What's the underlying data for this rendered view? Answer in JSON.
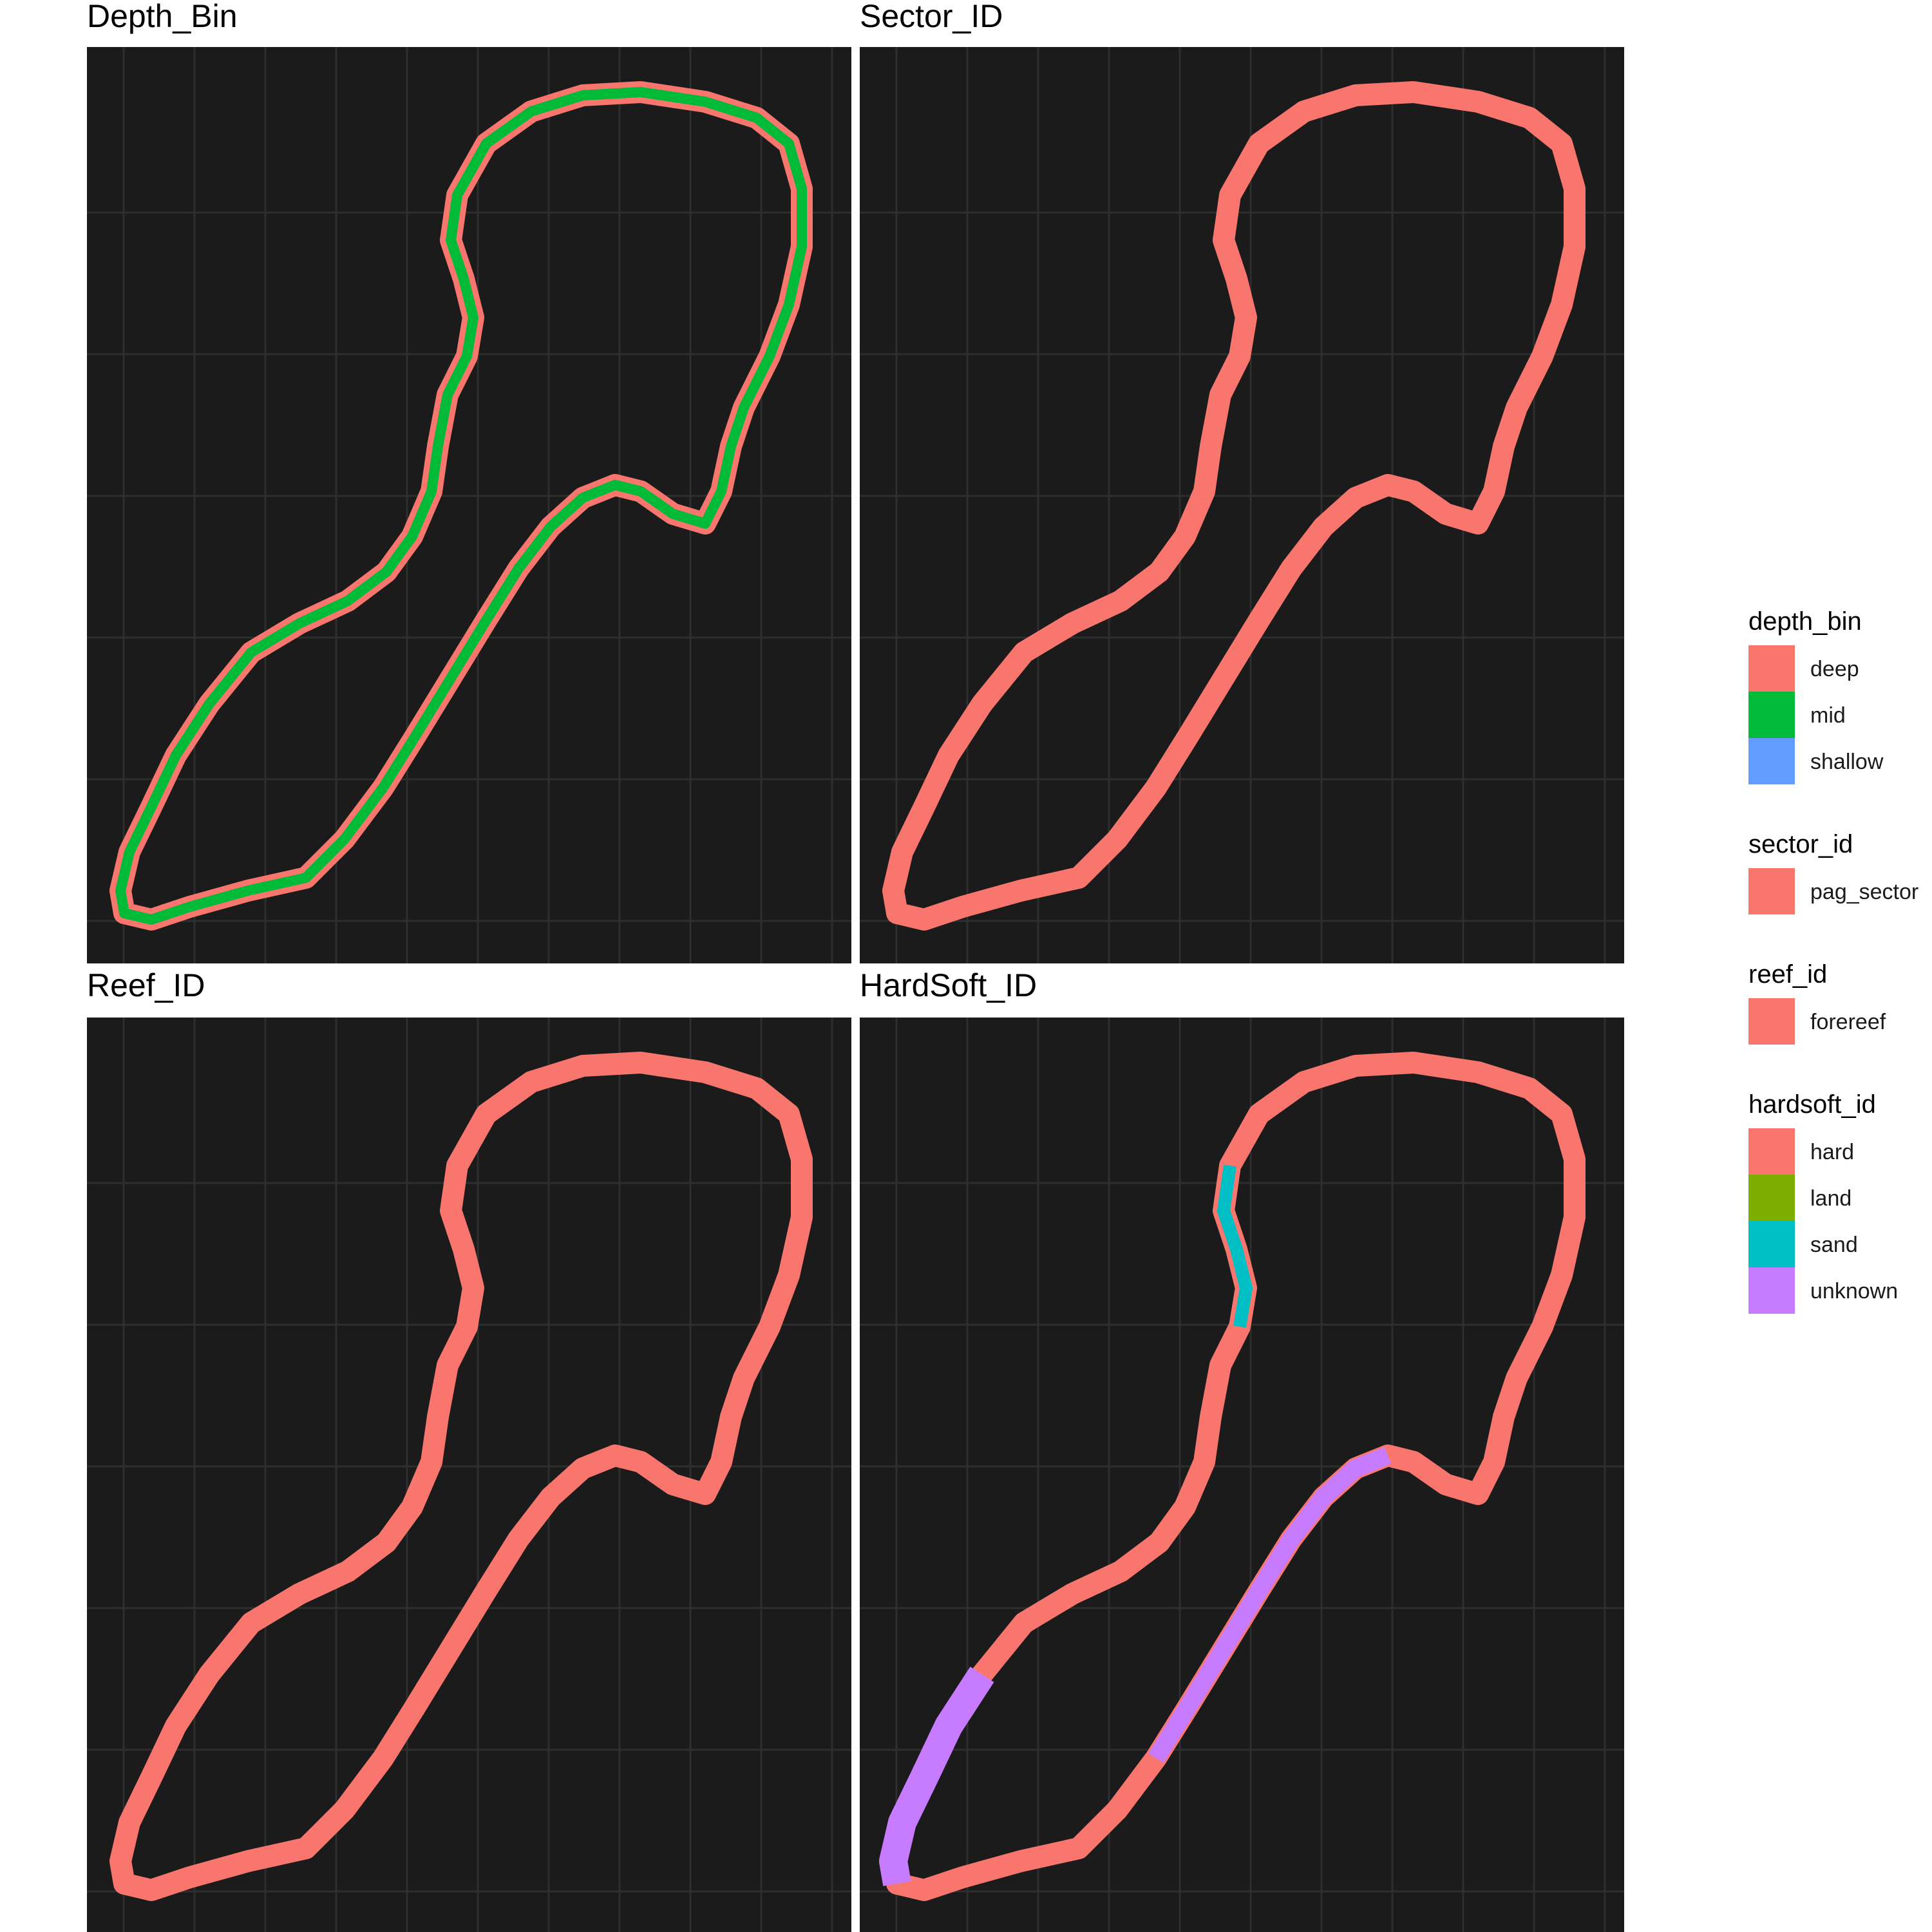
{
  "chart_data": [
    {
      "type": "map",
      "title": "Depth_Bin",
      "fill_variable": "depth_bin",
      "categories_shown": [
        "deep",
        "mid"
      ]
    },
    {
      "type": "map",
      "title": "Sector_ID",
      "fill_variable": "sector_id",
      "categories_shown": [
        "pag_sector"
      ]
    },
    {
      "type": "map",
      "title": "Reef_ID",
      "fill_variable": "reef_id",
      "categories_shown": [
        "forereef"
      ]
    },
    {
      "type": "map",
      "title": "HardSoft_ID",
      "fill_variable": "hardsoft_id",
      "categories_shown": [
        "hard",
        "sand",
        "unknown"
      ]
    }
  ],
  "legends": [
    {
      "title": "depth_bin",
      "items": [
        {
          "label": "deep",
          "color": "#F8766D"
        },
        {
          "label": "mid",
          "color": "#00BA38"
        },
        {
          "label": "shallow",
          "color": "#619CFF"
        }
      ]
    },
    {
      "title": "sector_id",
      "items": [
        {
          "label": "pag_sector",
          "color": "#F8766D"
        }
      ]
    },
    {
      "title": "reef_id",
      "items": [
        {
          "label": "forereef",
          "color": "#F8766D"
        }
      ]
    },
    {
      "title": "hardsoft_id",
      "items": [
        {
          "label": "hard",
          "color": "#F8766D"
        },
        {
          "label": "land",
          "color": "#7CAE00"
        },
        {
          "label": "sand",
          "color": "#00BFC4"
        },
        {
          "label": "unknown",
          "color": "#C77CFF"
        }
      ]
    }
  ],
  "style": {
    "panel_background": "#1b1b1b",
    "grid_color": "#2e2e2e",
    "grid": true
  }
}
